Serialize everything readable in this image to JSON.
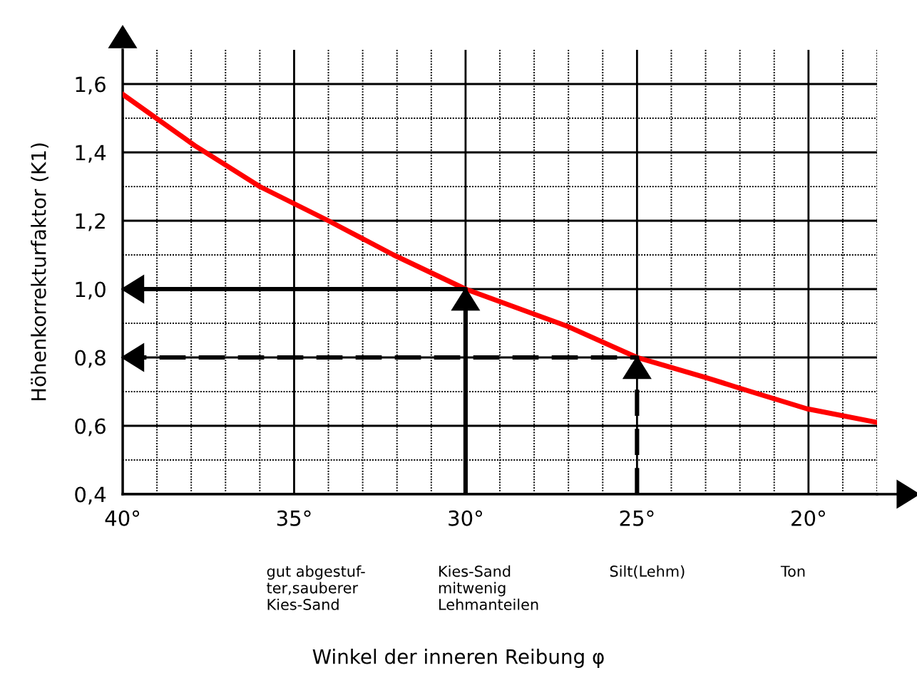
{
  "chart_data": {
    "type": "line",
    "ylabel": "Höhenkorrekturfaktor (K1)",
    "xlim": [
      40,
      18
    ],
    "ylim": [
      0.4,
      1.7
    ],
    "xticks": [
      {
        "value": 40,
        "label": "40°"
      },
      {
        "value": 35,
        "label": "35°"
      },
      {
        "value": 30,
        "label": "30°"
      },
      {
        "value": 25,
        "label": "25°"
      },
      {
        "value": 20,
        "label": "20°"
      }
    ],
    "yticks": [
      {
        "value": 0.4,
        "label": "0,4"
      },
      {
        "value": 0.6,
        "label": "0,6"
      },
      {
        "value": 0.8,
        "label": "0,8"
      },
      {
        "value": 1.0,
        "label": "1,0"
      },
      {
        "value": 1.2,
        "label": "1,2"
      },
      {
        "value": 1.4,
        "label": "1,4"
      },
      {
        "value": 1.6,
        "label": "1,6"
      }
    ],
    "grid": true,
    "marker": "none",
    "series": [
      {
        "color": "#ff0000",
        "line_style": "solid",
        "x": [
          40,
          37.9,
          36,
          34,
          32.1,
          30,
          27,
          25,
          22.95,
          22,
          20.05,
          18
        ],
        "values": [
          1.57,
          1.42,
          1.3,
          1.2,
          1.1,
          1.0,
          0.89,
          0.8,
          0.74,
          0.71,
          0.65,
          0.61
        ]
      },
      {
        "color": "#000000",
        "line_style": "solid",
        "x": [
          30,
          30,
          40
        ],
        "values": [
          0.4,
          1.0,
          1.0
        ]
      },
      {
        "color": "#000000",
        "line_style": "dashed",
        "x": [
          25,
          25,
          40
        ],
        "values": [
          0.4,
          0.8,
          0.8
        ]
      }
    ],
    "annotations": [
      "gut abgestuf-\nter,sauberer\nKies-Sand",
      "Kies-Sand\nmitwenig\nLehmanteilen",
      "Silt(Lehm)",
      "Ton",
      "Winkel der inneren Reibung φ"
    ]
  }
}
